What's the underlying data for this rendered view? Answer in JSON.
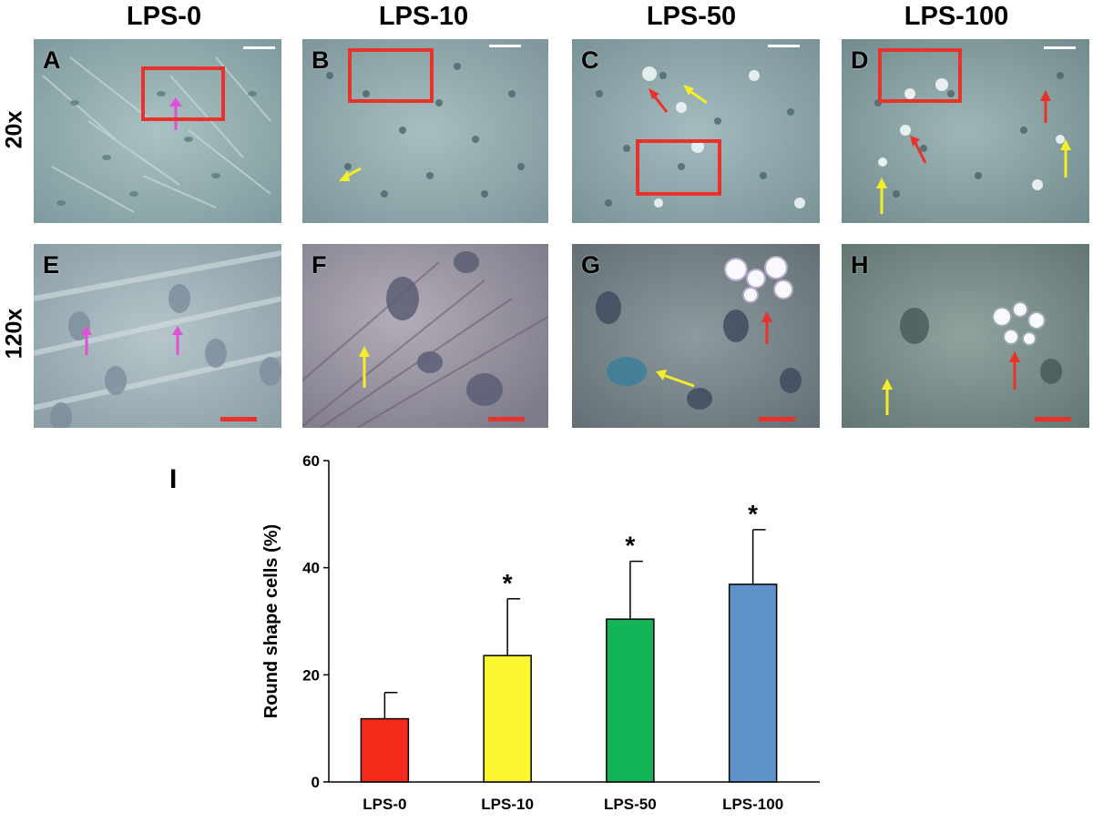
{
  "columns": [
    "LPS-0",
    "LPS-10",
    "LPS-50",
    "LPS-100"
  ],
  "rows": [
    "20x",
    "120x"
  ],
  "panels_top": [
    "A",
    "B",
    "C",
    "D"
  ],
  "panels_bottom": [
    "E",
    "F",
    "G",
    "H"
  ],
  "chart_panel_label": "I",
  "colors": {
    "zoom_box": "#e8322a",
    "arrow_red": "#e8322a",
    "arrow_yellow": "#f5ec2a",
    "arrow_magenta": "#e24ed9",
    "scalebar_top": "#ffffff",
    "scalebar_bottom": "#e8322a"
  },
  "chart_data": {
    "type": "bar",
    "categories": [
      "LPS-0",
      "LPS-10",
      "LPS-50",
      "LPS-100"
    ],
    "values": [
      11.8,
      23.6,
      30.4,
      36.9
    ],
    "errors": [
      4.9,
      10.6,
      10.8,
      10.2
    ],
    "significance": [
      "",
      "*",
      "*",
      "*"
    ],
    "bar_colors": [
      "#f52a1a",
      "#fbf631",
      "#13b455",
      "#5f92c8"
    ],
    "ylabel": "Round shape cells (%)",
    "xlabel": "",
    "ylim": [
      0,
      60
    ],
    "yticks": [
      0,
      20,
      40,
      60
    ],
    "grid": false
  }
}
